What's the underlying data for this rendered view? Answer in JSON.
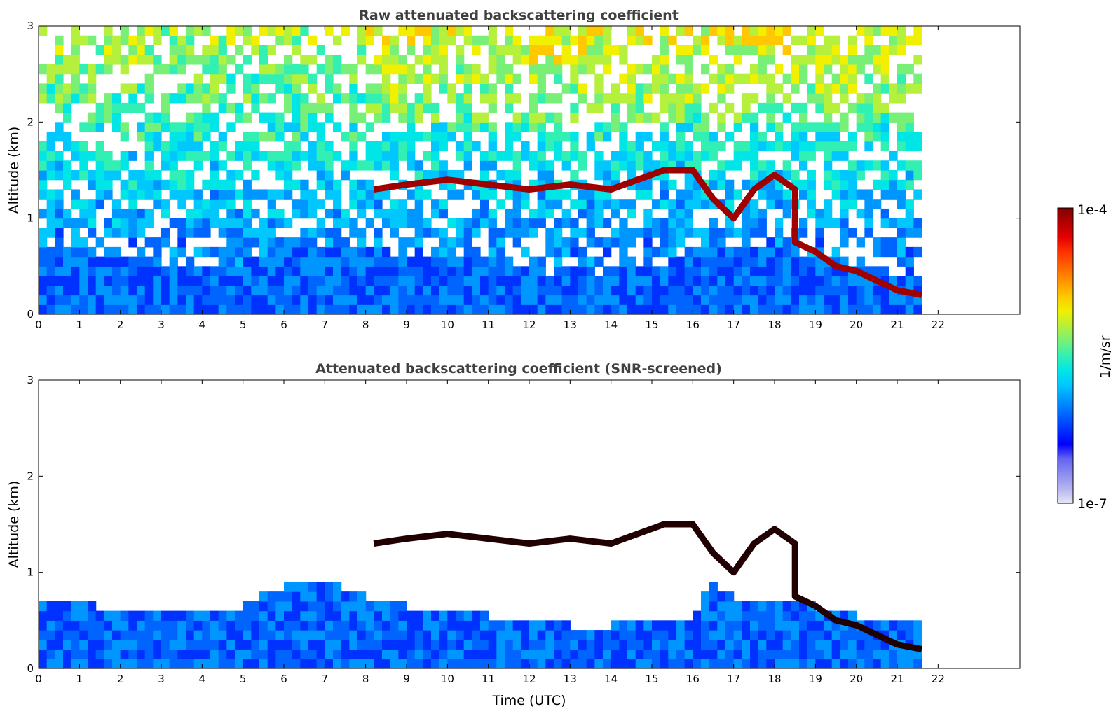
{
  "chart_data": [
    {
      "type": "heatmap",
      "title": "Raw attenuated backscattering coefficient",
      "ylabel": "Altitude (km)",
      "xlabel": "",
      "xlim": [
        0,
        24
      ],
      "ylim": [
        0,
        3
      ],
      "x_ticks": [
        "0",
        "1",
        "2",
        "3",
        "4",
        "5",
        "6",
        "7",
        "8",
        "9",
        "10",
        "11",
        "12",
        "13",
        "14",
        "15",
        "16",
        "17",
        "18",
        "19",
        "20",
        "21",
        "22"
      ],
      "y_ticks": [
        "0",
        "1",
        "2",
        "3"
      ],
      "data_end_time": 21.6,
      "features": {
        "boundary_layer_top": [
          [
            0,
            0.6
          ],
          [
            1.5,
            0.6
          ],
          [
            3,
            0.55
          ],
          [
            4,
            0.5
          ],
          [
            5,
            0.55
          ],
          [
            6,
            0.65
          ],
          [
            7,
            0.7
          ],
          [
            8,
            0.75
          ],
          [
            9,
            0.6
          ],
          [
            10,
            0.55
          ],
          [
            11,
            0.5
          ],
          [
            12,
            0.45
          ],
          [
            13,
            0.45
          ],
          [
            14,
            0.45
          ],
          [
            15,
            0.5
          ],
          [
            16,
            0.55
          ],
          [
            17,
            0.7
          ],
          [
            18,
            0.75
          ],
          [
            19,
            0.6
          ],
          [
            20,
            0.5
          ],
          [
            21,
            0.4
          ],
          [
            21.6,
            0.35
          ]
        ],
        "cloud_layer": [
          [
            8.2,
            1.3
          ],
          [
            9,
            1.35
          ],
          [
            10,
            1.4
          ],
          [
            11,
            1.35
          ],
          [
            12,
            1.3
          ],
          [
            13,
            1.35
          ],
          [
            14,
            1.3
          ],
          [
            15.3,
            1.5
          ],
          [
            16,
            1.5
          ],
          [
            16.5,
            1.2
          ],
          [
            17,
            1.0
          ],
          [
            17.5,
            1.3
          ],
          [
            18,
            1.45
          ],
          [
            18.5,
            1.3
          ],
          [
            18.5,
            0.75
          ],
          [
            19,
            0.65
          ],
          [
            19.5,
            0.5
          ],
          [
            20,
            0.45
          ],
          [
            20.5,
            0.35
          ],
          [
            21,
            0.25
          ],
          [
            21.6,
            0.2
          ]
        ]
      }
    },
    {
      "type": "heatmap",
      "title": "Attenuated backscattering coefficient (SNR-screened)",
      "ylabel": "Altitude (km)",
      "xlabel": "Time (UTC)",
      "xlim": [
        0,
        24
      ],
      "ylim": [
        0,
        3
      ],
      "x_ticks": [
        "0",
        "1",
        "2",
        "3",
        "4",
        "5",
        "6",
        "7",
        "8",
        "9",
        "10",
        "11",
        "12",
        "13",
        "14",
        "15",
        "16",
        "17",
        "18",
        "19",
        "20",
        "21",
        "22"
      ],
      "y_ticks": [
        "0",
        "1",
        "2",
        "3"
      ],
      "data_end_time": 21.6,
      "features": {
        "boundary_layer_top": [
          [
            0,
            0.65
          ],
          [
            1,
            0.68
          ],
          [
            2,
            0.62
          ],
          [
            3,
            0.58
          ],
          [
            4,
            0.55
          ],
          [
            5,
            0.65
          ],
          [
            6,
            0.85
          ],
          [
            7,
            0.95
          ],
          [
            8,
            0.75
          ],
          [
            9,
            0.65
          ],
          [
            10,
            0.6
          ],
          [
            11,
            0.55
          ],
          [
            12,
            0.5
          ],
          [
            13,
            0.45
          ],
          [
            14,
            0.45
          ],
          [
            15,
            0.5
          ],
          [
            16,
            0.55
          ],
          [
            16.5,
            0.9
          ],
          [
            17,
            0.75
          ],
          [
            18,
            0.75
          ],
          [
            19,
            0.65
          ],
          [
            20,
            0.55
          ],
          [
            21,
            0.5
          ],
          [
            21.6,
            0.45
          ]
        ],
        "cloud_layer": [
          [
            8.2,
            1.3
          ],
          [
            9,
            1.35
          ],
          [
            10,
            1.4
          ],
          [
            11,
            1.35
          ],
          [
            12,
            1.3
          ],
          [
            13,
            1.35
          ],
          [
            14,
            1.3
          ],
          [
            15.3,
            1.5
          ],
          [
            16,
            1.5
          ],
          [
            16.5,
            1.2
          ],
          [
            17,
            1.0
          ],
          [
            17.5,
            1.3
          ],
          [
            18,
            1.45
          ],
          [
            18.5,
            1.3
          ],
          [
            18.5,
            0.75
          ],
          [
            19,
            0.65
          ],
          [
            19.5,
            0.5
          ],
          [
            20,
            0.45
          ],
          [
            20.5,
            0.35
          ],
          [
            21,
            0.25
          ],
          [
            21.6,
            0.2
          ]
        ]
      }
    }
  ],
  "colorbar": {
    "label": "1/m/sr",
    "max_label": "1e-4",
    "min_label": "1e-7",
    "colors": [
      "#e6e6f5",
      "#b4b4f0",
      "#8c8cf0",
      "#6464f0",
      "#0000ff",
      "#0032ff",
      "#0064ff",
      "#0096ff",
      "#00c8ff",
      "#00e6e6",
      "#32f0b4",
      "#78f078",
      "#b4f03c",
      "#f0f000",
      "#ffc800",
      "#ff9600",
      "#ff6400",
      "#ff3200",
      "#e60000",
      "#b40000",
      "#800000"
    ]
  }
}
